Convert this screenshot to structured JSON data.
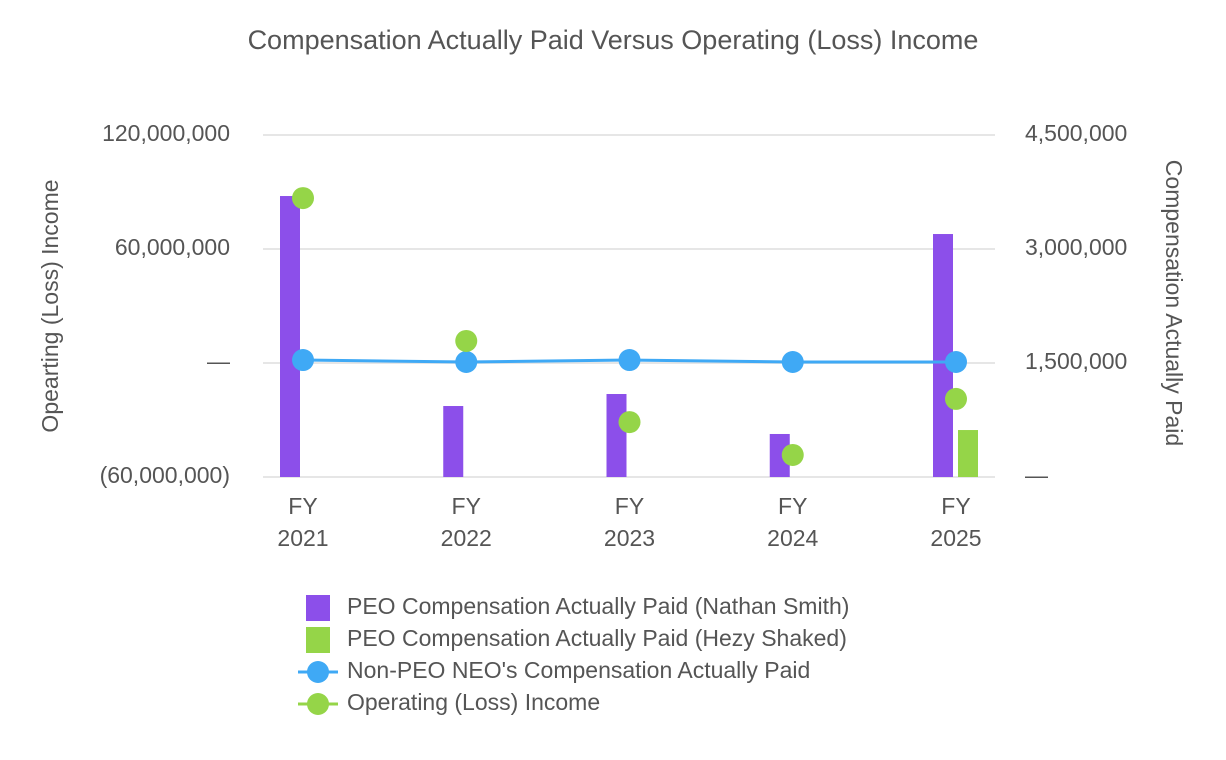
{
  "chart_data": {
    "type": "bar",
    "title": "Compensation Actually Paid Versus Operating (Loss) Income",
    "y_label": "Opearting (Loss) Income",
    "y2_label": "Compensation Actually Paid",
    "categories": [
      "FY 2021",
      "FY 2022",
      "FY 2023",
      "FY 2024",
      "FY 2025"
    ],
    "series": [
      {
        "name": "PEO Compensation Actually Paid (Nathan Smith)",
        "type": "bar",
        "axis": "y2",
        "color": "#8c4fea",
        "values": [
          3697000,
          934000,
          1092000,
          566000,
          3197000
        ]
      },
      {
        "name": "PEO Compensation Actually Paid (Hezy Shaked)",
        "type": "bar",
        "axis": "y2",
        "color": "#95d548",
        "values": [
          null,
          null,
          null,
          null,
          618000
        ]
      },
      {
        "name": "Non-PEO NEO's Compensation Actually Paid",
        "type": "line",
        "axis": "y2",
        "color": "#3fa9f5",
        "values": [
          1539000,
          1513000,
          1539000,
          1513000,
          1513000
        ]
      },
      {
        "name": "Operating (Loss) Income",
        "type": "scatter",
        "color": "#95d548",
        "values": [
          86800000,
          11600000,
          -31100000,
          -48400000,
          -18900000
        ]
      }
    ],
    "ylim": [
      -60000000,
      120000000
    ],
    "yticks": [
      {
        "value": -60000000,
        "label": "(60,000,000)"
      },
      {
        "value": 0,
        "label": "—"
      },
      {
        "value": 60000000,
        "label": "60,000,000"
      },
      {
        "value": 120000000,
        "label": "120,000,000"
      }
    ],
    "y2lim": [
      0,
      4500000
    ],
    "y2ticks": [
      {
        "value": 0,
        "label": "—"
      },
      {
        "value": 1500000,
        "label": "1,500,000"
      },
      {
        "value": 3000000,
        "label": "3,000,000"
      },
      {
        "value": 4500000,
        "label": "4,500,000"
      }
    ],
    "grid": true
  }
}
